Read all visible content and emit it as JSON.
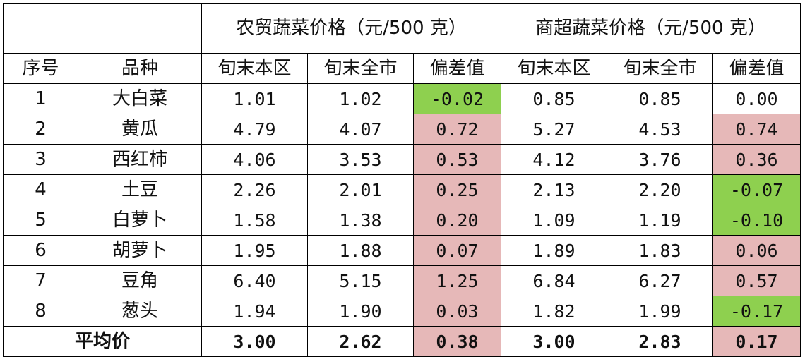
{
  "table": {
    "group_headers": [
      "农贸蔬菜价格（元/500 克）",
      "商超蔬菜价格（元/500 克）"
    ],
    "sub_headers": [
      "序号",
      "品种",
      "旬末本区",
      "旬末全市",
      "偏差值",
      "旬末本区",
      "旬末全市",
      "偏差值"
    ],
    "rows": [
      {
        "no": "1",
        "name": "大白菜",
        "nm_local": "1.01",
        "nm_city": "1.02",
        "nm_diff": "-0.02",
        "nm_sign": "neg",
        "sm_local": "0.85",
        "sm_city": "0.85",
        "sm_diff": "0.00",
        "sm_sign": "zero"
      },
      {
        "no": "2",
        "name": "黄瓜",
        "nm_local": "4.79",
        "nm_city": "4.07",
        "nm_diff": "0.72",
        "nm_sign": "pos",
        "sm_local": "5.27",
        "sm_city": "4.53",
        "sm_diff": "0.74",
        "sm_sign": "pos"
      },
      {
        "no": "3",
        "name": "西红柿",
        "nm_local": "4.06",
        "nm_city": "3.53",
        "nm_diff": "0.53",
        "nm_sign": "pos",
        "sm_local": "4.12",
        "sm_city": "3.76",
        "sm_diff": "0.36",
        "sm_sign": "pos"
      },
      {
        "no": "4",
        "name": "土豆",
        "nm_local": "2.26",
        "nm_city": "2.01",
        "nm_diff": "0.25",
        "nm_sign": "pos",
        "sm_local": "2.13",
        "sm_city": "2.20",
        "sm_diff": "-0.07",
        "sm_sign": "neg"
      },
      {
        "no": "5",
        "name": "白萝卜",
        "nm_local": "1.58",
        "nm_city": "1.38",
        "nm_diff": "0.20",
        "nm_sign": "pos",
        "sm_local": "1.09",
        "sm_city": "1.19",
        "sm_diff": "-0.10",
        "sm_sign": "neg"
      },
      {
        "no": "6",
        "name": "胡萝卜",
        "nm_local": "1.95",
        "nm_city": "1.88",
        "nm_diff": "0.07",
        "nm_sign": "pos",
        "sm_local": "1.89",
        "sm_city": "1.83",
        "sm_diff": "0.06",
        "sm_sign": "pos"
      },
      {
        "no": "7",
        "name": "豆角",
        "nm_local": "6.40",
        "nm_city": "5.15",
        "nm_diff": "1.25",
        "nm_sign": "pos",
        "sm_local": "6.84",
        "sm_city": "6.27",
        "sm_diff": "0.57",
        "sm_sign": "pos"
      },
      {
        "no": "8",
        "name": "葱头",
        "nm_local": "1.94",
        "nm_city": "1.90",
        "nm_diff": "0.03",
        "nm_sign": "pos",
        "sm_local": "1.82",
        "sm_city": "1.99",
        "sm_diff": "-0.17",
        "sm_sign": "neg"
      }
    ],
    "average": {
      "label": "平均价",
      "nm_local": "3.00",
      "nm_city": "2.62",
      "nm_diff": "0.38",
      "nm_sign": "pos",
      "sm_local": "3.00",
      "sm_city": "2.83",
      "sm_diff": "0.17",
      "sm_sign": "pos"
    },
    "colors": {
      "positive_fill": "#e6b8b8",
      "negative_fill": "#8ed04f"
    }
  }
}
